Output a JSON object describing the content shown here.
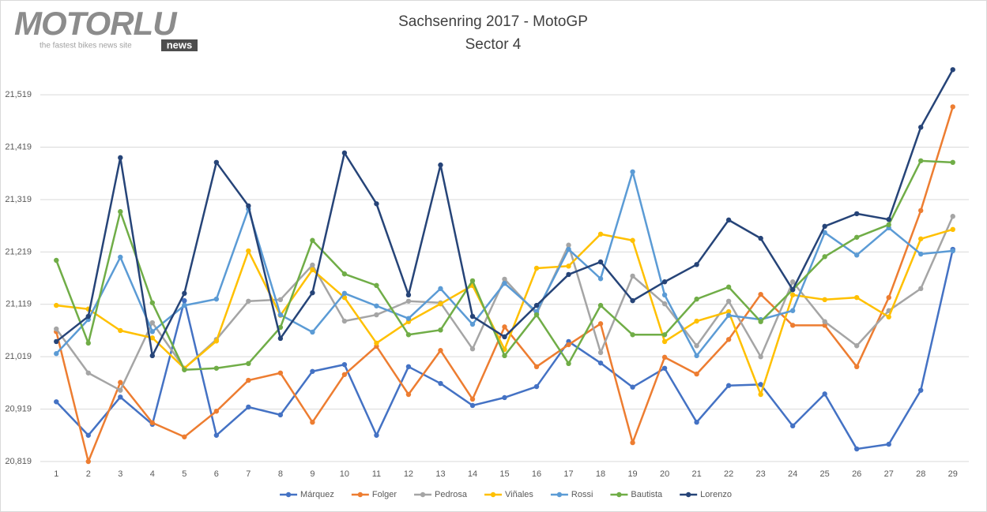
{
  "logo": {
    "name": "MOTORLU",
    "badge": "news",
    "tagline": "the fastest bikes news site"
  },
  "chart_data": {
    "type": "line",
    "title": "Sachsenring 2017 - MotoGP",
    "subtitle": "Sector 4",
    "categories": [
      "1",
      "2",
      "3",
      "4",
      "5",
      "6",
      "7",
      "8",
      "9",
      "10",
      "11",
      "12",
      "13",
      "14",
      "15",
      "16",
      "17",
      "18",
      "19",
      "20",
      "21",
      "22",
      "23",
      "24",
      "25",
      "26",
      "27",
      "28",
      "29"
    ],
    "ylim": [
      20.819,
      21.59
    ],
    "yticks": [
      {
        "value": 20.819,
        "label": "20,819"
      },
      {
        "value": 20.919,
        "label": "20,919"
      },
      {
        "value": 21.019,
        "label": "21,019"
      },
      {
        "value": 21.119,
        "label": "21,119"
      },
      {
        "value": 21.219,
        "label": "21,219"
      },
      {
        "value": 21.319,
        "label": "21,319"
      },
      {
        "value": 21.419,
        "label": "21,419"
      },
      {
        "value": 21.519,
        "label": "21,519"
      }
    ],
    "grid": true,
    "legend": "bottom",
    "series": [
      {
        "name": "Márquez",
        "color": "#4472c4",
        "values": [
          20.933,
          20.869,
          20.942,
          20.89,
          21.126,
          20.869,
          20.923,
          20.908,
          20.991,
          21.004,
          20.869,
          21.0,
          20.968,
          20.926,
          20.941,
          20.962,
          21.048,
          21.007,
          20.961,
          20.997,
          20.894,
          20.964,
          20.966,
          20.887,
          20.948,
          20.843,
          20.852,
          20.955,
          21.224
        ]
      },
      {
        "name": "Folger",
        "color": "#ed7d31",
        "values": [
          21.067,
          20.819,
          20.97,
          20.893,
          20.866,
          20.915,
          20.974,
          20.988,
          20.894,
          20.985,
          21.039,
          20.947,
          21.031,
          20.938,
          21.076,
          21.0,
          21.042,
          21.082,
          20.855,
          21.018,
          20.986,
          21.052,
          21.138,
          21.079,
          21.079,
          21.0,
          21.132,
          21.298,
          21.496
        ]
      },
      {
        "name": "Pedrosa",
        "color": "#a5a5a5",
        "values": [
          21.072,
          20.988,
          20.955,
          21.084,
          20.997,
          21.052,
          21.125,
          21.128,
          21.194,
          21.087,
          21.099,
          21.125,
          21.122,
          21.034,
          21.167,
          21.101,
          21.232,
          21.027,
          21.173,
          21.12,
          21.04,
          21.125,
          21.019,
          21.162,
          21.086,
          21.04,
          21.107,
          21.149,
          21.287
        ]
      },
      {
        "name": "Viñales",
        "color": "#ffc000",
        "values": [
          21.117,
          21.11,
          21.069,
          21.055,
          20.997,
          21.049,
          21.221,
          21.098,
          21.185,
          21.132,
          21.045,
          21.086,
          21.12,
          21.155,
          21.033,
          21.188,
          21.192,
          21.253,
          21.241,
          21.048,
          21.087,
          21.105,
          20.947,
          21.137,
          21.128,
          21.132,
          21.095,
          21.244,
          21.262
        ]
      },
      {
        "name": "Rossi",
        "color": "#5b9bd5",
        "values": [
          21.025,
          21.09,
          21.209,
          21.067,
          21.117,
          21.129,
          21.301,
          21.099,
          21.066,
          21.14,
          21.116,
          21.092,
          21.149,
          21.081,
          21.159,
          21.105,
          21.224,
          21.168,
          21.372,
          21.137,
          21.021,
          21.098,
          21.09,
          21.107,
          21.256,
          21.213,
          21.265,
          21.215,
          21.221
        ]
      },
      {
        "name": "Bautista",
        "color": "#70ad47",
        "values": [
          21.203,
          21.045,
          21.296,
          21.122,
          20.994,
          20.997,
          21.006,
          21.075,
          21.241,
          21.177,
          21.155,
          21.061,
          21.07,
          21.164,
          21.021,
          21.099,
          21.006,
          21.117,
          21.061,
          21.061,
          21.129,
          21.152,
          21.086,
          21.147,
          21.21,
          21.247,
          21.271,
          21.393,
          21.39
        ]
      },
      {
        "name": "Lorenzo",
        "color": "#264478",
        "values": [
          21.048,
          21.096,
          21.399,
          21.021,
          21.14,
          21.39,
          21.307,
          21.054,
          21.141,
          21.408,
          21.311,
          21.137,
          21.385,
          21.096,
          21.057,
          21.117,
          21.176,
          21.2,
          21.126,
          21.162,
          21.195,
          21.28,
          21.245,
          21.147,
          21.268,
          21.292,
          21.281,
          21.457,
          21.567
        ]
      }
    ]
  }
}
